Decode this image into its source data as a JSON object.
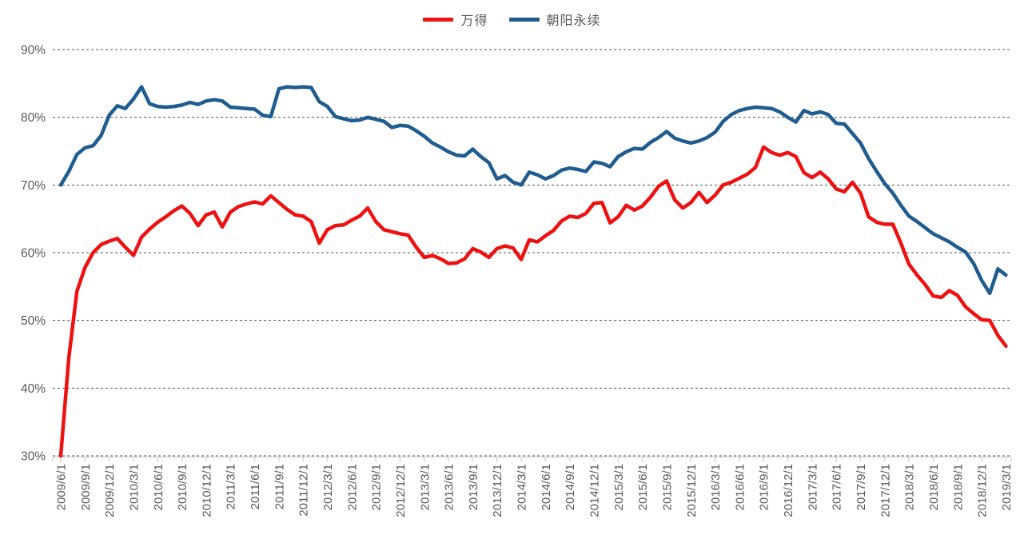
{
  "legend": {
    "items": [
      {
        "label": "万得",
        "color": "#ee1111"
      },
      {
        "label": "朝阳永续",
        "color": "#1f5c8f"
      }
    ]
  },
  "colors": {
    "wind_red": "#ee1111",
    "chaoyang_blue": "#1f5c8f",
    "axis_text": "#595959",
    "gridline": "#555555",
    "axis_line": "#d9d9d9"
  },
  "chart_data": {
    "type": "line",
    "title": "",
    "xlabel": "",
    "ylabel": "",
    "ylim": [
      30,
      90
    ],
    "grid": "horizontal-dashed",
    "legend_position": "top-center",
    "y_ticks": [
      "90%",
      "80%",
      "70%",
      "60%",
      "50%",
      "40%",
      "30%"
    ],
    "x_tick_labels": [
      "2009/6/1",
      "2009/9/1",
      "2009/12/1",
      "2010/3/1",
      "2010/6/1",
      "2010/9/1",
      "2010/12/1",
      "2011/3/1",
      "2011/6/1",
      "2011/9/1",
      "2011/12/1",
      "2012/3/1",
      "2012/6/1",
      "2012/9/1",
      "2012/12/1",
      "2013/3/1",
      "2013/6/1",
      "2013/9/1",
      "2013/12/1",
      "2014/3/1",
      "2014/6/1",
      "2014/9/1",
      "2014/12/1",
      "2015/3/1",
      "2015/6/1",
      "2015/9/1",
      "2015/12/1",
      "2016/3/1",
      "2016/6/1",
      "2016/9/1",
      "2016/12/1",
      "2017/3/1",
      "2017/6/1",
      "2017/9/1",
      "2017/12/1",
      "2018/3/1",
      "2018/6/1",
      "2018/9/1",
      "2018/12/1",
      "2019/3/1"
    ],
    "x": [
      "2009/6/1",
      "2009/7/1",
      "2009/8/1",
      "2009/9/1",
      "2009/10/1",
      "2009/11/1",
      "2009/12/1",
      "2010/1/1",
      "2010/2/1",
      "2010/3/1",
      "2010/4/1",
      "2010/5/1",
      "2010/6/1",
      "2010/7/1",
      "2010/8/1",
      "2010/9/1",
      "2010/10/1",
      "2010/11/1",
      "2010/12/1",
      "2011/1/1",
      "2011/2/1",
      "2011/3/1",
      "2011/4/1",
      "2011/5/1",
      "2011/6/1",
      "2011/7/1",
      "2011/8/1",
      "2011/9/1",
      "2011/10/1",
      "2011/11/1",
      "2011/12/1",
      "2012/1/1",
      "2012/2/1",
      "2012/3/1",
      "2012/4/1",
      "2012/5/1",
      "2012/6/1",
      "2012/7/1",
      "2012/8/1",
      "2012/9/1",
      "2012/10/1",
      "2012/11/1",
      "2012/12/1",
      "2013/1/1",
      "2013/2/1",
      "2013/3/1",
      "2013/4/1",
      "2013/5/1",
      "2013/6/1",
      "2013/7/1",
      "2013/8/1",
      "2013/9/1",
      "2013/10/1",
      "2013/11/1",
      "2013/12/1",
      "2014/1/1",
      "2014/2/1",
      "2014/3/1",
      "2014/4/1",
      "2014/5/1",
      "2014/6/1",
      "2014/7/1",
      "2014/8/1",
      "2014/9/1",
      "2014/10/1",
      "2014/11/1",
      "2014/12/1",
      "2015/1/1",
      "2015/2/1",
      "2015/3/1",
      "2015/4/1",
      "2015/5/1",
      "2015/6/1",
      "2015/7/1",
      "2015/8/1",
      "2015/9/1",
      "2015/10/1",
      "2015/11/1",
      "2015/12/1",
      "2016/1/1",
      "2016/2/1",
      "2016/3/1",
      "2016/4/1",
      "2016/5/1",
      "2016/6/1",
      "2016/7/1",
      "2016/8/1",
      "2016/9/1",
      "2016/10/1",
      "2016/11/1",
      "2016/12/1",
      "2017/1/1",
      "2017/2/1",
      "2017/3/1",
      "2017/4/1",
      "2017/5/1",
      "2017/6/1",
      "2017/7/1",
      "2017/8/1",
      "2017/9/1",
      "2017/10/1",
      "2017/11/1",
      "2017/12/1",
      "2018/1/1",
      "2018/2/1",
      "2018/3/1",
      "2018/4/1",
      "2018/5/1",
      "2018/6/1",
      "2018/7/1",
      "2018/8/1",
      "2018/9/1",
      "2018/10/1",
      "2018/11/1",
      "2018/12/1",
      "2019/1/1",
      "2019/2/1",
      "2019/3/1"
    ],
    "series": [
      {
        "name": "万得",
        "color": "#ee1111",
        "values": [
          30.0,
          44.5,
          54.3,
          57.8,
          60.0,
          61.2,
          61.7,
          62.1,
          60.8,
          59.6,
          62.3,
          63.5,
          64.5,
          65.3,
          66.2,
          66.9,
          65.8,
          64.0,
          65.6,
          66.0,
          63.8,
          66.0,
          66.8,
          67.2,
          67.5,
          67.2,
          68.4,
          67.4,
          66.4,
          65.6,
          65.4,
          64.6,
          61.4,
          63.4,
          64.0,
          64.1,
          64.8,
          65.4,
          66.6,
          64.6,
          63.4,
          63.1,
          62.8,
          62.6,
          60.8,
          59.3,
          59.6,
          59.1,
          58.4,
          58.5,
          59.1,
          60.6,
          60.1,
          59.3,
          60.6,
          61.0,
          60.7,
          59.0,
          61.9,
          61.6,
          62.5,
          63.3,
          64.7,
          65.4,
          65.2,
          65.8,
          67.3,
          67.4,
          64.4,
          65.3,
          67.0,
          66.3,
          66.9,
          68.2,
          69.8,
          70.6,
          67.8,
          66.6,
          67.4,
          68.9,
          67.4,
          68.5,
          70.0,
          70.4,
          71.0,
          71.6,
          72.6,
          75.6,
          74.8,
          74.4,
          74.8,
          74.2,
          71.8,
          71.1,
          71.9,
          70.9,
          69.4,
          69.0,
          70.4,
          68.8,
          65.3,
          64.5,
          64.2,
          64.2,
          61.4,
          58.3,
          56.7,
          55.3,
          53.6,
          53.4,
          54.4,
          53.7,
          52.0,
          51.0,
          50.1,
          50.0,
          47.8,
          46.2
        ]
      },
      {
        "name": "朝阳永续",
        "color": "#1f5c8f",
        "values": [
          70.0,
          72.0,
          74.5,
          75.5,
          75.8,
          77.3,
          80.3,
          81.7,
          81.3,
          82.7,
          84.5,
          82.0,
          81.6,
          81.5,
          81.6,
          81.8,
          82.2,
          81.9,
          82.4,
          82.6,
          82.4,
          81.5,
          81.4,
          81.3,
          81.2,
          80.3,
          80.1,
          84.2,
          84.5,
          84.4,
          84.5,
          84.4,
          82.3,
          81.6,
          80.1,
          79.8,
          79.5,
          79.6,
          80.0,
          79.7,
          79.4,
          78.5,
          78.8,
          78.7,
          78.0,
          77.2,
          76.2,
          75.6,
          74.9,
          74.4,
          74.3,
          75.3,
          74.2,
          73.3,
          70.9,
          71.4,
          70.4,
          70.0,
          71.9,
          71.5,
          70.9,
          71.4,
          72.2,
          72.5,
          72.3,
          72.0,
          73.4,
          73.2,
          72.7,
          74.2,
          74.9,
          75.4,
          75.3,
          76.3,
          77.0,
          77.9,
          76.9,
          76.5,
          76.2,
          76.5,
          77.0,
          77.8,
          79.4,
          80.4,
          81.0,
          81.3,
          81.5,
          81.4,
          81.3,
          80.8,
          80.0,
          79.3,
          81.0,
          80.5,
          80.8,
          80.4,
          79.1,
          79.0,
          77.6,
          76.2,
          73.9,
          72.0,
          70.2,
          68.8,
          67.0,
          65.4,
          64.6,
          63.7,
          62.8,
          62.2,
          61.6,
          60.8,
          60.1,
          58.4,
          55.9,
          54.0,
          57.6,
          56.7
        ]
      }
    ]
  }
}
